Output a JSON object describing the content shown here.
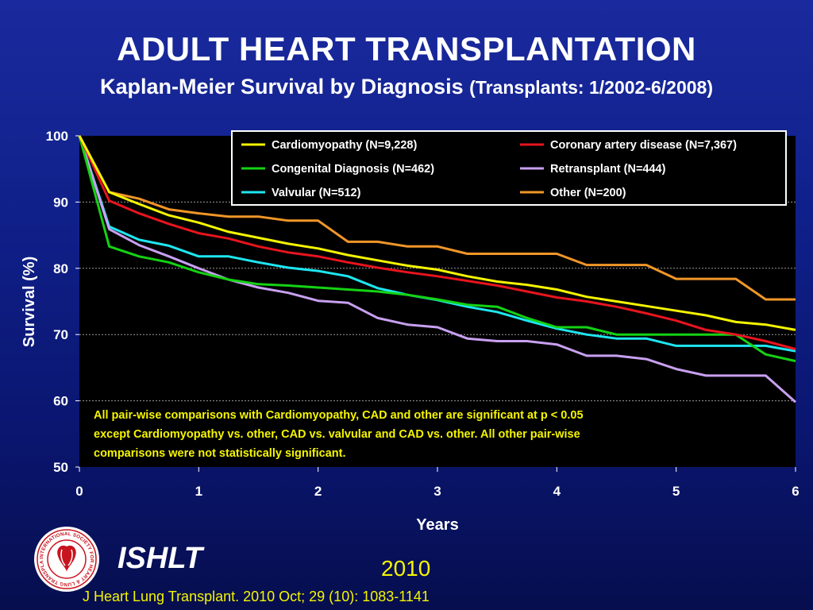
{
  "slide": {
    "title": "ADULT HEART TRANSPLANTATION",
    "subtitle_main": "Kaplan-Meier Survival by Diagnosis",
    "subtitle_paren": "(Transplants: 1/2002-6/2008)",
    "org": "ISHLT",
    "year": "2010",
    "citation": "J Heart Lung Transplant. 2010 Oct; 29 (10): 1083-1141",
    "logo_text": "INTERNATIONAL SOCIETY FOR HEART & LUNG TRANSPLANTATION"
  },
  "chart_data": {
    "type": "line",
    "title": "",
    "xlabel": "Years",
    "ylabel": "Survival (%)",
    "xlim": [
      0,
      6
    ],
    "ylim": [
      50,
      100
    ],
    "xticks": [
      0,
      1,
      2,
      3,
      4,
      5,
      6
    ],
    "yticks": [
      50,
      60,
      70,
      80,
      90,
      100
    ],
    "grid": "horizontal dashed",
    "legend_position": "top-right",
    "annotation": [
      "All pair-wise comparisons with Cardiomyopathy, CAD and other are significant at p < 0.05",
      "except Cardiomyopathy vs. other, CAD vs. valvular and CAD vs. other.  All other pair-wise",
      "comparisons were not statistically significant."
    ],
    "x": [
      0,
      0.25,
      0.5,
      0.75,
      1,
      1.25,
      1.5,
      1.75,
      2,
      2.25,
      2.5,
      2.75,
      3,
      3.25,
      3.5,
      3.75,
      4,
      4.25,
      4.5,
      4.75,
      5,
      5.25,
      5.5,
      5.75,
      6
    ],
    "series": [
      {
        "name": "Cardiomyopathy  (N=9,228)",
        "color": "#f5f500",
        "values": [
          100,
          91.5,
          89.7,
          88.0,
          86.9,
          85.5,
          84.6,
          83.7,
          83.0,
          82.0,
          81.2,
          80.4,
          79.8,
          78.8,
          78.0,
          77.5,
          76.8,
          75.7,
          75.0,
          74.3,
          73.6,
          72.9,
          71.9,
          71.5,
          70.7
        ]
      },
      {
        "name": "Coronary artery disease (N=7,367)",
        "color": "#e8141e",
        "values": [
          100,
          90.2,
          88.3,
          86.7,
          85.3,
          84.5,
          83.3,
          82.4,
          81.8,
          80.9,
          80.1,
          79.4,
          78.8,
          78.1,
          77.4,
          76.5,
          75.6,
          75.0,
          74.2,
          73.2,
          72.1,
          70.7,
          70.0,
          69.0,
          67.8
        ]
      },
      {
        "name": "Congenital Diagnosis  (N=462)",
        "color": "#14d214",
        "values": [
          100,
          83.3,
          81.8,
          80.9,
          79.4,
          78.3,
          77.6,
          77.4,
          77.1,
          76.8,
          76.5,
          76.0,
          75.3,
          74.5,
          74.2,
          72.5,
          71.1,
          71.1,
          70.0,
          70.0,
          70.0,
          70.0,
          70.0,
          67.0,
          66.0
        ]
      },
      {
        "name": "Retransplant (N=444)",
        "color": "#c8a0f0",
        "values": [
          100,
          85.9,
          83.5,
          81.8,
          80.0,
          78.3,
          77.1,
          76.3,
          75.1,
          74.8,
          72.5,
          71.5,
          71.1,
          69.4,
          69.0,
          69.0,
          68.5,
          66.8,
          66.8,
          66.3,
          64.8,
          63.8,
          63.8,
          63.8,
          59.8
        ]
      },
      {
        "name": "Valvular (N=512)",
        "color": "#1ee6f0",
        "values": [
          100,
          86.3,
          84.3,
          83.4,
          81.8,
          81.8,
          80.9,
          80.1,
          79.6,
          78.8,
          77.0,
          76.0,
          75.2,
          74.2,
          73.4,
          72.1,
          70.9,
          70.0,
          69.4,
          69.4,
          68.3,
          68.3,
          68.3,
          68.3,
          67.5
        ]
      },
      {
        "name": "Other (N=200)",
        "color": "#f09628",
        "values": [
          100,
          91.5,
          90.5,
          88.9,
          88.3,
          87.8,
          87.8,
          87.2,
          87.2,
          84.0,
          84.0,
          83.3,
          83.3,
          82.2,
          82.2,
          82.2,
          82.2,
          80.5,
          80.5,
          80.5,
          78.4,
          78.4,
          78.4,
          75.3,
          75.3
        ]
      }
    ]
  }
}
